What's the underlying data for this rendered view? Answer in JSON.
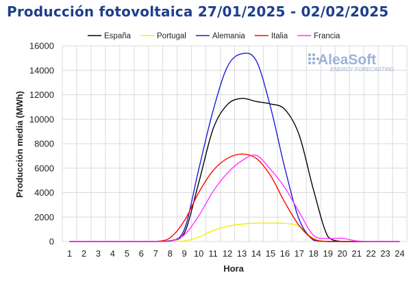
{
  "title": "Producción fotovoltaica 27/01/2025 - 02/02/2025",
  "watermark": {
    "brand": "AleaSoft",
    "tagline": "ENERGY FORECASTING",
    "color": "#9bb3d6"
  },
  "chart_data": {
    "type": "line",
    "title": "Producción fotovoltaica 27/01/2025 - 02/02/2025",
    "xlabel": "Hora",
    "ylabel": "Producción media (MWh)",
    "x": [
      1,
      2,
      3,
      4,
      5,
      6,
      7,
      8,
      9,
      10,
      11,
      12,
      13,
      14,
      15,
      16,
      17,
      18,
      19,
      20,
      21,
      22,
      23,
      24
    ],
    "ylim": [
      0,
      16000
    ],
    "yticks": [
      0,
      2000,
      4000,
      6000,
      8000,
      10000,
      12000,
      14000,
      16000
    ],
    "grid": true,
    "legend_position": "top",
    "series": [
      {
        "name": "España",
        "color": "#000000",
        "values": [
          0,
          0,
          0,
          0,
          0,
          0,
          0,
          50,
          700,
          4800,
          9200,
          11200,
          11700,
          11450,
          11250,
          10800,
          8700,
          4200,
          400,
          0,
          0,
          0,
          0,
          0
        ]
      },
      {
        "name": "Portugal",
        "color": "#f0f000",
        "values": [
          0,
          0,
          0,
          0,
          0,
          0,
          0,
          0,
          50,
          350,
          900,
          1250,
          1420,
          1500,
          1500,
          1480,
          1250,
          250,
          0,
          0,
          0,
          0,
          0,
          0
        ]
      },
      {
        "name": "Alemania",
        "color": "#1a1adb",
        "values": [
          0,
          0,
          0,
          0,
          0,
          0,
          0,
          30,
          1000,
          5900,
          10700,
          14300,
          15350,
          14800,
          11000,
          6000,
          1800,
          100,
          0,
          0,
          0,
          0,
          0,
          0
        ]
      },
      {
        "name": "Italia",
        "color": "#ff0000",
        "values": [
          0,
          0,
          0,
          0,
          0,
          0,
          10,
          300,
          1700,
          4000,
          5800,
          6800,
          7150,
          6800,
          5400,
          3200,
          1300,
          200,
          0,
          0,
          0,
          0,
          0,
          0
        ]
      },
      {
        "name": "Francia",
        "color": "#ff33ff",
        "values": [
          0,
          0,
          0,
          0,
          0,
          0,
          0,
          10,
          550,
          2100,
          4100,
          5600,
          6600,
          7050,
          5900,
          4400,
          2400,
          500,
          250,
          260,
          50,
          0,
          0,
          0
        ]
      }
    ]
  }
}
